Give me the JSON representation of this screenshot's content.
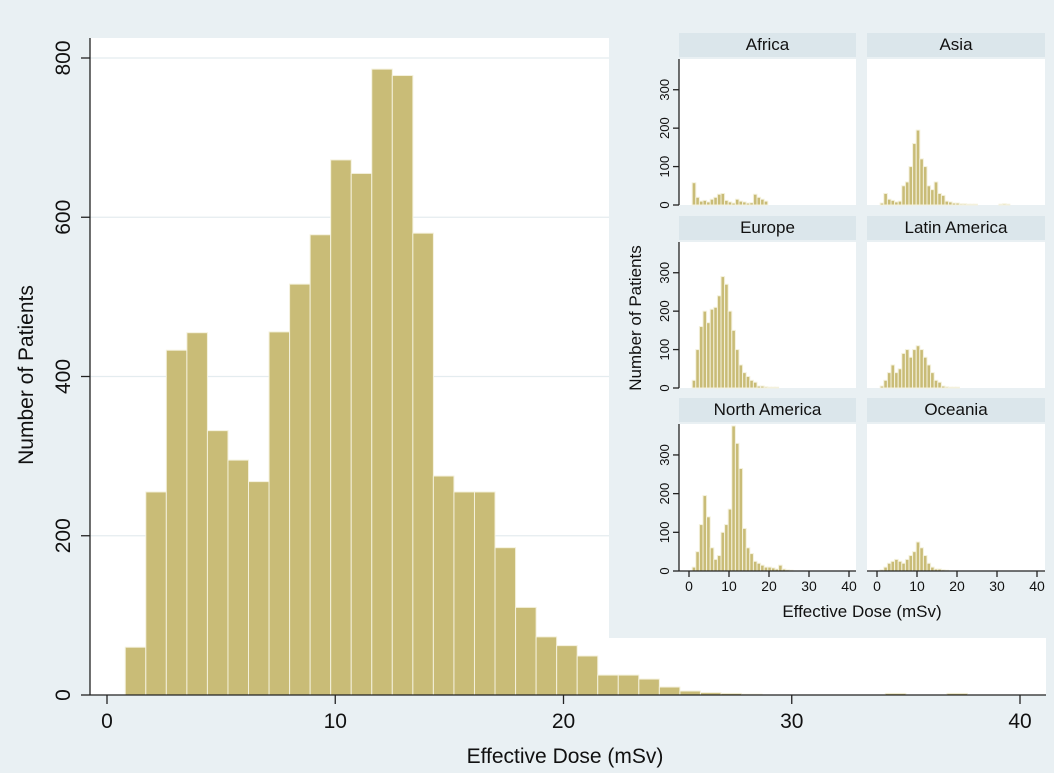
{
  "colors": {
    "outer_bg": "#e9f0f3",
    "plot_bg": "#ffffff",
    "bar_fill": "#c9bc77",
    "strip_bg": "#dbe6eb"
  },
  "chart_data": [
    {
      "type": "bar",
      "kind": "histogram",
      "xlabel": "Effective Dose (mSv)",
      "ylabel": "Number of Patients",
      "xlim": [
        0,
        40
      ],
      "ylim": [
        0,
        800
      ],
      "xticks": [
        0,
        10,
        20,
        30,
        40
      ],
      "yticks": [
        0,
        200,
        400,
        600,
        800
      ],
      "grid": true,
      "bin_width": 0.9,
      "bin_start": 0.8,
      "values": [
        60,
        255,
        433,
        455,
        332,
        295,
        268,
        456,
        516,
        578,
        672,
        655,
        786,
        778,
        580,
        275,
        255,
        255,
        185,
        110,
        73,
        62,
        49,
        25,
        25,
        20,
        10,
        5,
        3,
        2,
        1,
        0,
        0,
        0,
        0,
        0,
        0,
        2,
        0,
        0,
        2
      ]
    },
    {
      "type": "bar",
      "kind": "histogram-facets",
      "xlabel": "Effective Dose (mSv)",
      "ylabel": "Number of Patients",
      "xlim": [
        0,
        40
      ],
      "ylim": [
        0,
        380
      ],
      "xticks": [
        0,
        10,
        20,
        30,
        40
      ],
      "yticks": [
        0,
        100,
        200,
        300
      ],
      "bin_width": 0.9,
      "bin_start": 0.8,
      "panels": [
        {
          "name": "Africa",
          "values": [
            58,
            20,
            10,
            12,
            8,
            15,
            20,
            28,
            30,
            12,
            8,
            5,
            15,
            10,
            8,
            5,
            6,
            28,
            20,
            15,
            10
          ]
        },
        {
          "name": "Asia",
          "values": [
            5,
            30,
            15,
            12,
            8,
            10,
            50,
            60,
            100,
            160,
            195,
            120,
            100,
            50,
            40,
            60,
            30,
            25,
            10,
            8,
            5,
            5,
            3,
            3,
            2,
            2,
            2,
            0,
            0,
            0,
            0,
            0,
            0,
            2,
            3,
            2
          ]
        },
        {
          "name": "Europe",
          "values": [
            20,
            100,
            160,
            200,
            170,
            205,
            210,
            240,
            290,
            270,
            200,
            150,
            100,
            60,
            40,
            30,
            20,
            15,
            5,
            5,
            3,
            2,
            2,
            2
          ]
        },
        {
          "name": "Latin America",
          "values": [
            5,
            20,
            40,
            60,
            40,
            50,
            90,
            100,
            80,
            100,
            110,
            100,
            80,
            60,
            40,
            20,
            15,
            5,
            3,
            2,
            2,
            2
          ]
        },
        {
          "name": "North America",
          "values": [
            10,
            50,
            120,
            195,
            140,
            60,
            30,
            40,
            100,
            120,
            160,
            375,
            330,
            265,
            110,
            60,
            45,
            25,
            20,
            15,
            10,
            10,
            8,
            5,
            15,
            5,
            3,
            2
          ]
        },
        {
          "name": "Oceania",
          "values": [
            3,
            10,
            20,
            25,
            30,
            25,
            20,
            30,
            40,
            50,
            75,
            60,
            40,
            20,
            10,
            5,
            5,
            3,
            2
          ]
        }
      ]
    }
  ]
}
